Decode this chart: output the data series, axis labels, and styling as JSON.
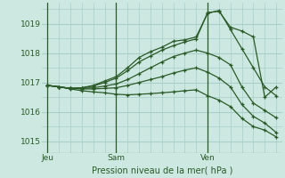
{
  "title": "Pression niveau de la mer( hPa )",
  "bg_color": "#cce8e0",
  "grid_color": "#a8cfc8",
  "line_color": "#2a5a28",
  "tick_label_color": "#2a5a28",
  "xtick_labels": [
    "Jeu",
    "Sam",
    "Ven"
  ],
  "xtick_positions": [
    0,
    6,
    14
  ],
  "vline_positions": [
    0,
    6,
    14
  ],
  "ylim": [
    1014.6,
    1019.7
  ],
  "ytick_positions": [
    1015,
    1016,
    1017,
    1018,
    1019
  ],
  "xlim": [
    -0.5,
    20.5
  ],
  "lines": [
    {
      "x": [
        0,
        1,
        2,
        3,
        4,
        5,
        6,
        7,
        8,
        9,
        10,
        11,
        12,
        13,
        14,
        15,
        16,
        17,
        18,
        19,
        20
      ],
      "y": [
        1016.9,
        1016.85,
        1016.8,
        1016.82,
        1016.9,
        1017.05,
        1017.2,
        1017.5,
        1017.85,
        1018.05,
        1018.2,
        1018.4,
        1018.45,
        1018.55,
        1019.35,
        1019.45,
        1018.8,
        1018.15,
        1017.5,
        1016.85,
        1016.55
      ]
    },
    {
      "x": [
        0,
        1,
        2,
        3,
        4,
        5,
        6,
        7,
        8,
        9,
        10,
        11,
        12,
        13,
        14,
        15,
        16,
        17,
        18,
        19,
        20
      ],
      "y": [
        1016.9,
        1016.85,
        1016.8,
        1016.82,
        1016.88,
        1017.0,
        1017.15,
        1017.4,
        1017.7,
        1017.9,
        1018.1,
        1018.25,
        1018.38,
        1018.48,
        1019.38,
        1019.42,
        1018.88,
        1018.75,
        1018.55,
        1016.5,
        1016.85
      ]
    },
    {
      "x": [
        0,
        1,
        2,
        3,
        4,
        5,
        6,
        7,
        8,
        9,
        10,
        11,
        12,
        13,
        14,
        15,
        16,
        17,
        18,
        19,
        20
      ],
      "y": [
        1016.9,
        1016.85,
        1016.8,
        1016.8,
        1016.82,
        1016.88,
        1016.95,
        1017.1,
        1017.3,
        1017.5,
        1017.7,
        1017.88,
        1018.0,
        1018.1,
        1018.0,
        1017.85,
        1017.6,
        1016.85,
        1016.3,
        1016.05,
        1015.8
      ]
    },
    {
      "x": [
        0,
        1,
        2,
        3,
        4,
        5,
        6,
        7,
        8,
        9,
        10,
        11,
        12,
        13,
        14,
        15,
        16,
        17,
        18,
        19,
        20
      ],
      "y": [
        1016.9,
        1016.85,
        1016.8,
        1016.78,
        1016.78,
        1016.8,
        1016.82,
        1016.9,
        1017.0,
        1017.1,
        1017.2,
        1017.32,
        1017.42,
        1017.5,
        1017.35,
        1017.15,
        1016.85,
        1016.25,
        1015.85,
        1015.62,
        1015.3
      ]
    },
    {
      "x": [
        0,
        1,
        2,
        3,
        4,
        5,
        6,
        7,
        8,
        9,
        10,
        11,
        12,
        13,
        14,
        15,
        16,
        17,
        18,
        19,
        20
      ],
      "y": [
        1016.9,
        1016.85,
        1016.78,
        1016.72,
        1016.68,
        1016.65,
        1016.6,
        1016.58,
        1016.6,
        1016.62,
        1016.65,
        1016.68,
        1016.72,
        1016.75,
        1016.55,
        1016.4,
        1016.18,
        1015.78,
        1015.5,
        1015.38,
        1015.15
      ]
    }
  ]
}
